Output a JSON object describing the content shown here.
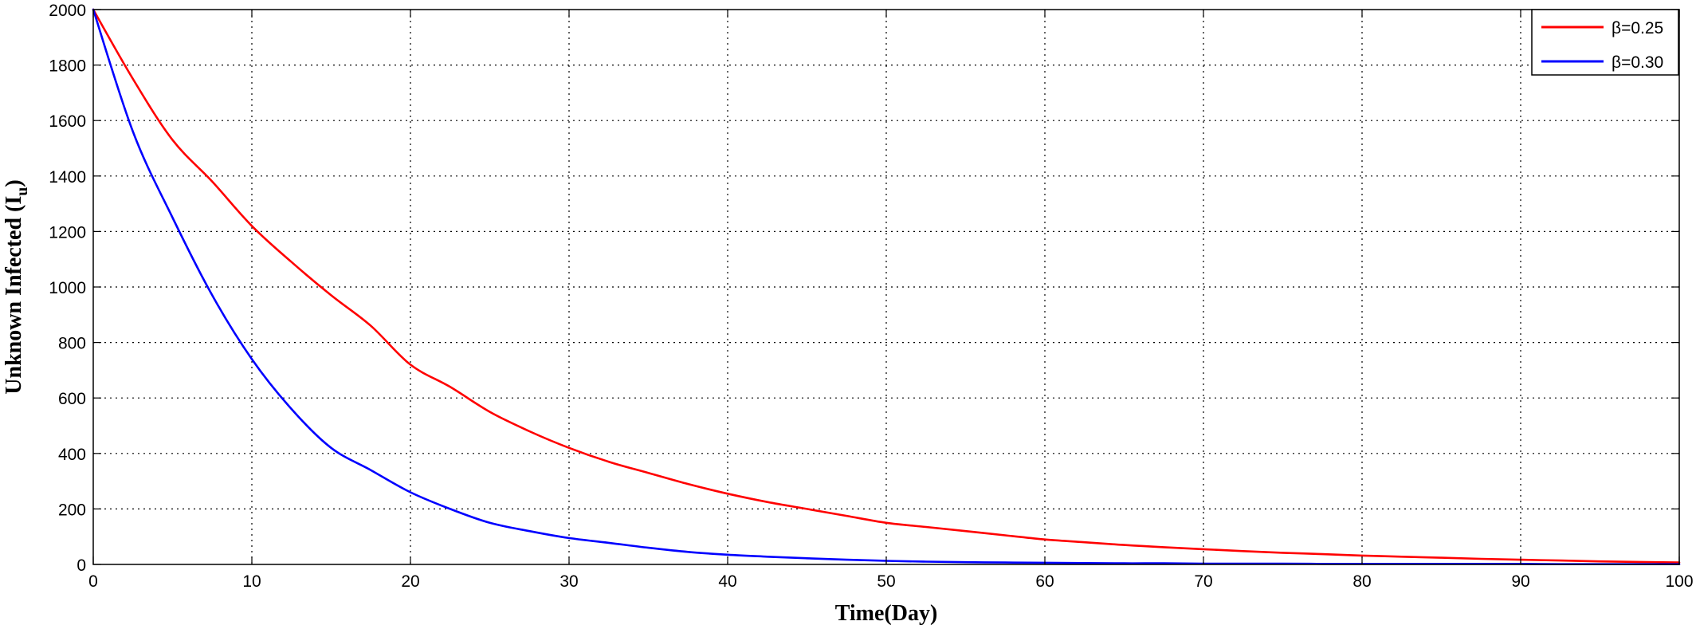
{
  "chart_data": {
    "type": "line",
    "title": "",
    "xlabel": "Time(Day)",
    "ylabel_main": "Unknown Infected (I",
    "ylabel_sub": "u",
    "ylabel_close": ")",
    "xlim": [
      0,
      100
    ],
    "ylim": [
      0,
      2000
    ],
    "xticks": [
      0,
      10,
      20,
      30,
      40,
      50,
      60,
      70,
      80,
      90,
      100
    ],
    "yticks": [
      0,
      200,
      400,
      600,
      800,
      1000,
      1200,
      1400,
      1600,
      1800,
      2000
    ],
    "grid": true,
    "legend_position": "top-right",
    "x": [
      0,
      2.5,
      5,
      7.5,
      10,
      12.5,
      15,
      17.5,
      20,
      22.5,
      25,
      27.5,
      30,
      32.5,
      35,
      37.5,
      40,
      42.5,
      45,
      47.5,
      50,
      52.5,
      55,
      57.5,
      60,
      62.5,
      65,
      67.5,
      70,
      72.5,
      75,
      77.5,
      80,
      82.5,
      85,
      87.5,
      90,
      92.5,
      95,
      97.5,
      100
    ],
    "series": [
      {
        "name": "β=0.25",
        "color": "#ff0000",
        "values": [
          2000,
          1750,
          1530,
          1380,
          1220,
          1090,
          970,
          860,
          720,
          640,
          550,
          480,
          420,
          370,
          330,
          290,
          255,
          225,
          200,
          175,
          150,
          135,
          120,
          105,
          90,
          80,
          70,
          62,
          55,
          48,
          42,
          37,
          32,
          28,
          24,
          20,
          17,
          14,
          11,
          9,
          7
        ]
      },
      {
        "name": "β=0.30",
        "color": "#0000ff",
        "values": [
          2000,
          1560,
          1250,
          970,
          740,
          560,
          420,
          340,
          260,
          200,
          150,
          120,
          95,
          78,
          60,
          45,
          35,
          28,
          22,
          17,
          13,
          10,
          8,
          7,
          6,
          5,
          4,
          4,
          3,
          3,
          3,
          2,
          2,
          2,
          2,
          2,
          2,
          1,
          1,
          1,
          1
        ]
      }
    ]
  }
}
